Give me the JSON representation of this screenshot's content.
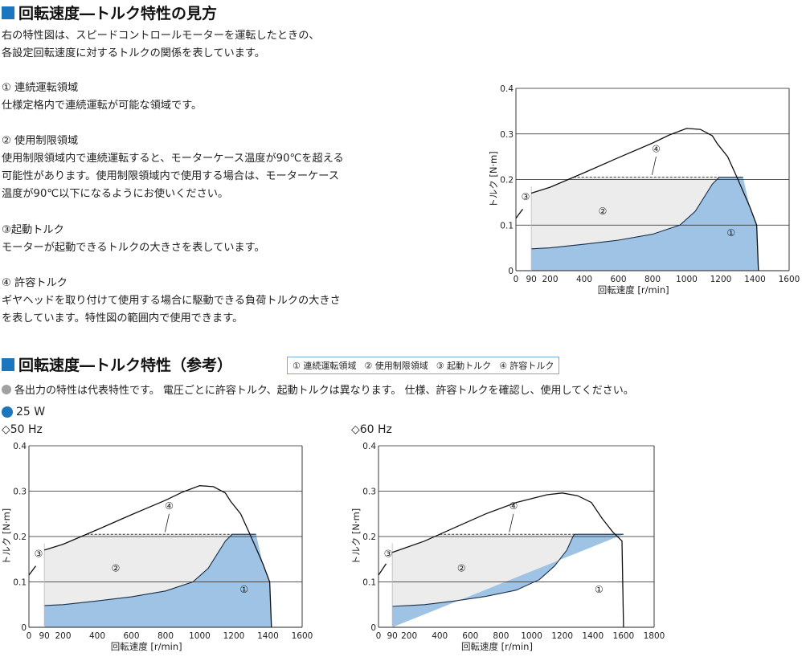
{
  "section1": {
    "title": "回転速度―トルク特性の見方",
    "intro_line1": "右の特性図は、スピードコントロールモーターを運転したときの、",
    "intro_line2": "各設定回転速度に対するトルクの関係を表しています。",
    "items": [
      {
        "heading": "① 連続運転領域",
        "lines": [
          "仕様定格内で連続運転が可能な領域です。"
        ]
      },
      {
        "heading": "② 使用制限領域",
        "lines": [
          "使用制限領域内で連続運転すると、モーターケース温度が90℃を超える",
          "可能性があります。使用制限領域内で使用する場合は、モーターケース",
          "温度が90℃以下になるようにお使いください。"
        ]
      },
      {
        "heading": "③起動トルク",
        "lines": [
          "モーターが起動できるトルクの大きさを表しています。"
        ]
      },
      {
        "heading": "④ 許容トルク",
        "lines": [
          "ギヤヘッドを取り付けて使用する場合に駆動できる負荷トルクの大きさ",
          "を表しています。特性図の範囲内で使用できます。"
        ]
      }
    ]
  },
  "section2": {
    "title": "回転速度―トルク特性（参考）",
    "legend": [
      "① 連続運転領域",
      "② 使用制限領域",
      "③ 起動トルク",
      "④ 許容トルク"
    ],
    "note": "各出力の特性は代表特性です。 電圧ごとに許容トルク、起動トルクは異なります。 仕様、許容トルクを確認し、使用してください。",
    "output": "25 W",
    "freq_50": "◇50 Hz",
    "freq_60": "◇60 Hz"
  },
  "colors": {
    "accent": "#1a76bf",
    "continuous": "#9ec3e4",
    "limited": "#ececec",
    "note_dot": "#a0a0a0"
  },
  "chart_data": [
    {
      "type": "area",
      "id": "explain",
      "xlabel": "回転速度 [r/min]",
      "ylabel": "トルク [N·m]",
      "xlim": [
        0,
        1600
      ],
      "ylim": [
        0,
        0.4
      ],
      "x_ticks": [
        0,
        90,
        200,
        400,
        600,
        800,
        1000,
        1200,
        1400,
        1600
      ],
      "y_ticks": [
        0,
        0.1,
        0.2,
        0.3,
        0.4
      ],
      "region_labels": [
        "①",
        "②",
        "③",
        "④"
      ],
      "start_x": 90,
      "allowable_torque": 0.205,
      "continuous_boundary": [
        [
          90,
          0.048
        ],
        [
          200,
          0.05
        ],
        [
          400,
          0.058
        ],
        [
          600,
          0.067
        ],
        [
          800,
          0.08
        ],
        [
          960,
          0.1
        ],
        [
          1050,
          0.13
        ],
        [
          1100,
          0.16
        ],
        [
          1150,
          0.19
        ],
        [
          1190,
          0.205
        ]
      ],
      "continuous_top_end": 1330,
      "max_torque_curve": [
        [
          90,
          0.17
        ],
        [
          200,
          0.183
        ],
        [
          400,
          0.215
        ],
        [
          600,
          0.248
        ],
        [
          800,
          0.28
        ],
        [
          900,
          0.298
        ],
        [
          1000,
          0.312
        ],
        [
          1080,
          0.31
        ],
        [
          1150,
          0.296
        ],
        [
          1180,
          0.278
        ],
        [
          1240,
          0.25
        ],
        [
          1300,
          0.2
        ],
        [
          1370,
          0.14
        ],
        [
          1410,
          0.1
        ],
        [
          1420,
          0
        ]
      ],
      "starting_torque_line": [
        [
          0,
          0.115
        ],
        [
          40,
          0.135
        ]
      ]
    },
    {
      "type": "area",
      "id": "hz50",
      "xlabel": "回転速度 [r/min]",
      "ylabel": "トルク [N·m]",
      "xlim": [
        0,
        1600
      ],
      "ylim": [
        0,
        0.4
      ],
      "x_ticks": [
        0,
        90,
        200,
        400,
        600,
        800,
        1000,
        1200,
        1400,
        1600
      ],
      "y_ticks": [
        0,
        0.1,
        0.2,
        0.3,
        0.4
      ],
      "region_labels": [
        "①",
        "②",
        "③",
        "④"
      ],
      "start_x": 90,
      "allowable_torque": 0.205,
      "continuous_boundary": [
        [
          90,
          0.048
        ],
        [
          200,
          0.05
        ],
        [
          400,
          0.058
        ],
        [
          600,
          0.067
        ],
        [
          800,
          0.08
        ],
        [
          960,
          0.1
        ],
        [
          1050,
          0.13
        ],
        [
          1100,
          0.16
        ],
        [
          1150,
          0.19
        ],
        [
          1190,
          0.205
        ]
      ],
      "continuous_top_end": 1330,
      "max_torque_curve": [
        [
          90,
          0.17
        ],
        [
          200,
          0.183
        ],
        [
          400,
          0.215
        ],
        [
          600,
          0.248
        ],
        [
          800,
          0.28
        ],
        [
          900,
          0.298
        ],
        [
          1000,
          0.312
        ],
        [
          1080,
          0.31
        ],
        [
          1150,
          0.296
        ],
        [
          1180,
          0.278
        ],
        [
          1240,
          0.25
        ],
        [
          1300,
          0.2
        ],
        [
          1370,
          0.14
        ],
        [
          1410,
          0.1
        ],
        [
          1420,
          0
        ]
      ],
      "starting_torque_line": [
        [
          0,
          0.115
        ],
        [
          40,
          0.135
        ]
      ]
    },
    {
      "type": "area",
      "id": "hz60",
      "xlabel": "回転速度 [r/min]",
      "ylabel": "トルク [N·m]",
      "xlim": [
        0,
        1800
      ],
      "ylim": [
        0,
        0.4
      ],
      "x_ticks": [
        0,
        90,
        200,
        400,
        600,
        800,
        1000,
        1200,
        1400,
        1600,
        1800
      ],
      "y_ticks": [
        0,
        0.1,
        0.2,
        0.3,
        0.4
      ],
      "region_labels": [
        "①",
        "②",
        "③",
        "④"
      ],
      "start_x": 90,
      "allowable_torque": 0.205,
      "continuous_boundary": [
        [
          90,
          0.046
        ],
        [
          300,
          0.05
        ],
        [
          500,
          0.058
        ],
        [
          700,
          0.068
        ],
        [
          900,
          0.082
        ],
        [
          1050,
          0.105
        ],
        [
          1150,
          0.135
        ],
        [
          1230,
          0.17
        ],
        [
          1270,
          0.2
        ],
        [
          1280,
          0.205
        ]
      ],
      "continuous_top_end": 1600,
      "max_torque_curve": [
        [
          90,
          0.165
        ],
        [
          300,
          0.19
        ],
        [
          500,
          0.22
        ],
        [
          700,
          0.25
        ],
        [
          900,
          0.275
        ],
        [
          1100,
          0.292
        ],
        [
          1200,
          0.296
        ],
        [
          1300,
          0.29
        ],
        [
          1390,
          0.275
        ],
        [
          1460,
          0.24
        ],
        [
          1530,
          0.21
        ],
        [
          1590,
          0.19
        ],
        [
          1600,
          0
        ]
      ],
      "starting_torque_line": [
        [
          0,
          0.115
        ],
        [
          50,
          0.14
        ]
      ]
    }
  ]
}
